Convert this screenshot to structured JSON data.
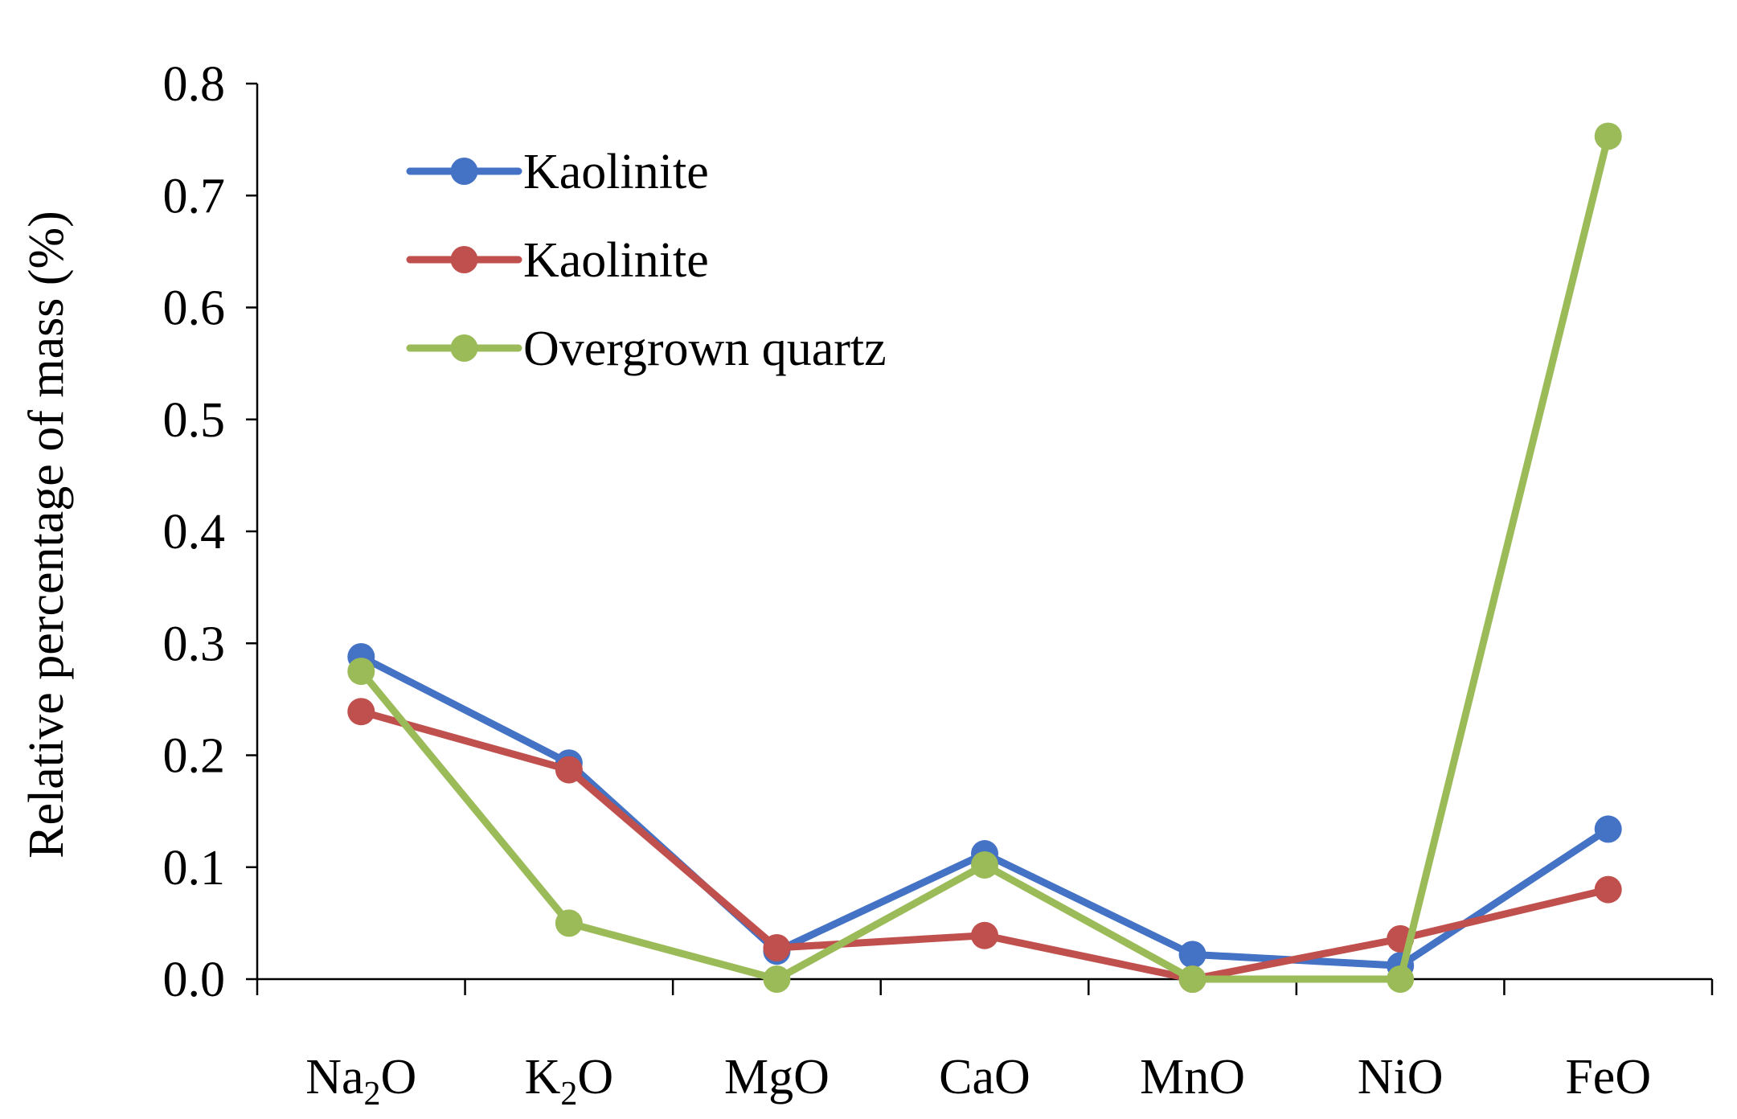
{
  "chart_data": {
    "type": "line",
    "title": "",
    "xlabel": "",
    "ylabel": "Relative percentage of mass (%)",
    "ylim": [
      0,
      0.8
    ],
    "yticks": [
      "0.0",
      "0.1",
      "0.2",
      "0.3",
      "0.4",
      "0.5",
      "0.6",
      "0.7",
      "0.8"
    ],
    "categories": [
      {
        "base": "Na",
        "sub": "2",
        "tail": "O",
        "name": "Na2O"
      },
      {
        "base": "K",
        "sub": "2",
        "tail": "O",
        "name": "K2O"
      },
      {
        "base": "MgO",
        "sub": "",
        "tail": "",
        "name": "MgO"
      },
      {
        "base": "CaO",
        "sub": "",
        "tail": "",
        "name": "CaO"
      },
      {
        "base": "MnO",
        "sub": "",
        "tail": "",
        "name": "MnO"
      },
      {
        "base": "NiO",
        "sub": "",
        "tail": "",
        "name": "NiO"
      },
      {
        "base": "FeO",
        "sub": "",
        "tail": "",
        "name": "FeO"
      }
    ],
    "grid": false,
    "legend_position": "top-left",
    "series": [
      {
        "name": "Kaolinite",
        "color": "#4472C4",
        "values": [
          0.288,
          0.193,
          0.025,
          0.112,
          0.022,
          0.012,
          0.134
        ]
      },
      {
        "name": "Kaolinite",
        "color": "#C0504D",
        "values": [
          0.239,
          0.187,
          0.028,
          0.039,
          0.0,
          0.036,
          0.08
        ]
      },
      {
        "name": "Overgrown quartz",
        "color": "#9BBB59",
        "values": [
          0.275,
          0.05,
          0.0,
          0.102,
          0.0,
          0.0,
          0.753
        ]
      }
    ]
  }
}
